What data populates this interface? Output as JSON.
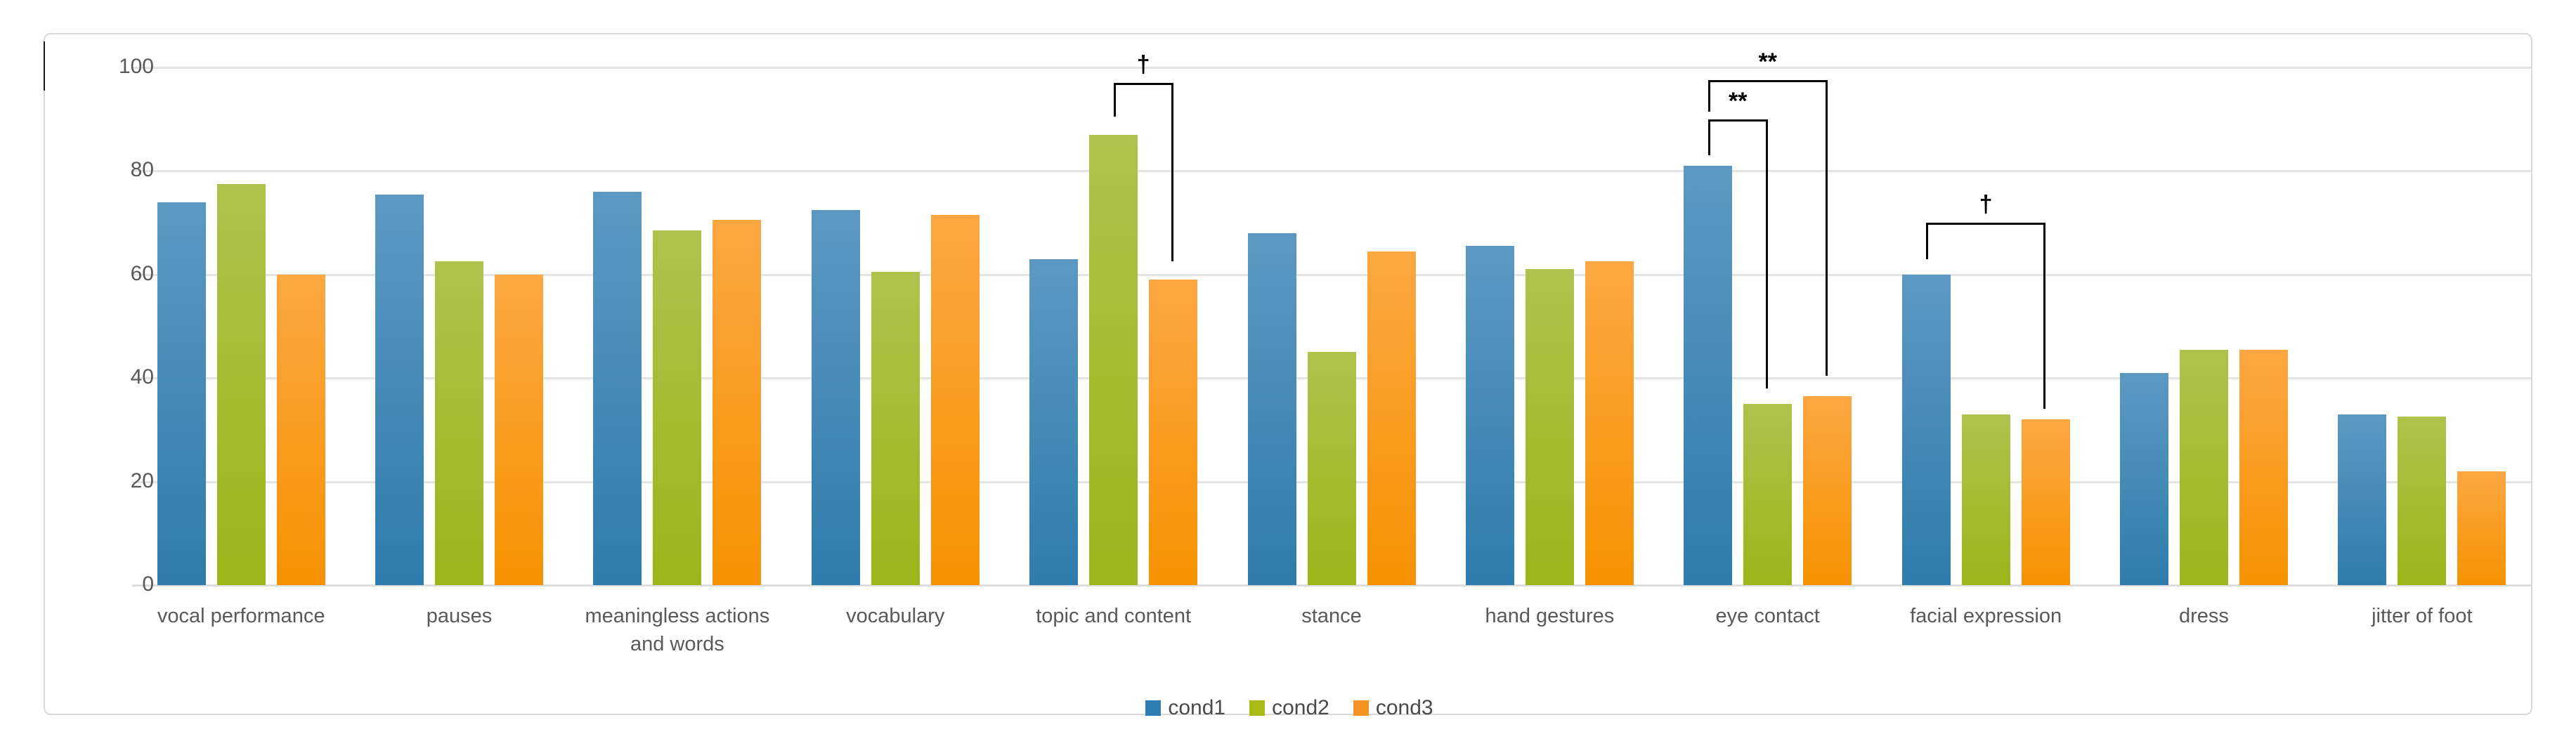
{
  "chart_data": {
    "type": "bar",
    "title": "",
    "categories": [
      "vocal performance",
      "pauses",
      "meaningless actions and words",
      "vocabulary",
      "topic and content",
      "stance",
      "hand gestures",
      "eye contact",
      "facial expression",
      "dress",
      "jitter of foot"
    ],
    "series": [
      {
        "name": "cond1",
        "legend_color": "#2e80b4",
        "color_top": "#5c99c2",
        "color_bottom": "#2e7cad",
        "values": [
          74,
          75.5,
          76,
          72.5,
          63,
          68,
          65.5,
          81,
          60,
          41,
          33
        ]
      },
      {
        "name": "cond2",
        "legend_color": "#a9ba16",
        "color_top": "#afc24c",
        "color_bottom": "#9cb519",
        "values": [
          77.5,
          62.5,
          68.5,
          60.5,
          87,
          45,
          61,
          35,
          33,
          45.5,
          32.5
        ]
      },
      {
        "name": "cond3",
        "legend_color": "#f79421",
        "color_top": "#fca742",
        "color_bottom": "#f69200",
        "values": [
          60,
          60,
          70.5,
          71.5,
          59,
          64.5,
          62.5,
          36.5,
          32,
          45.5,
          22
        ]
      }
    ],
    "y_axis": {
      "min": 0,
      "max": 100,
      "tick_step": 20,
      "tick_labels": [
        "0",
        "20",
        "40",
        "60",
        "80",
        "100"
      ]
    },
    "grid": true,
    "legend_position": "bottom",
    "annotations": [
      {
        "label": "†",
        "category": "topic and content",
        "between": [
          "cond2",
          "cond3"
        ],
        "top_value": 97,
        "from_leg_end": 90.5,
        "to_leg_end": 62.5
      },
      {
        "label": "**",
        "category": "eye contact",
        "between": [
          "cond1",
          "cond3"
        ],
        "top_value": 97.5,
        "from_leg_end": 91.5,
        "to_leg_end": 40.5
      },
      {
        "label": "**",
        "category": "eye contact",
        "between": [
          "cond1",
          "cond2"
        ],
        "top_value": 90,
        "from_leg_end": 83,
        "to_leg_end": 38
      },
      {
        "label": "†",
        "category": "facial expression",
        "between": [
          "cond1",
          "cond3"
        ],
        "top_value": 70,
        "from_leg_end": 63,
        "to_leg_end": 34
      }
    ]
  },
  "styles": {
    "gridline_color": "#e4e4e4",
    "frame_border_color": "#d9d9d9",
    "axis_text_color": "#595959",
    "annotation_color": "#000000",
    "background": "#ffffff"
  }
}
